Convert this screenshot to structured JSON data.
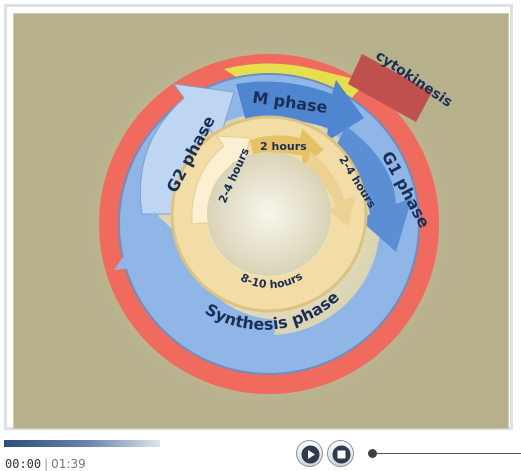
{
  "diagram": {
    "phases": {
      "m_phase": "M phase",
      "g1_phase": "G1 phase",
      "g2_phase": "G2 phase",
      "synthesis_phase": "Synthesis phase",
      "cytokinesis": "cytokinesis"
    },
    "durations": {
      "m": "2 hours",
      "g1": "2-4 hours",
      "g2": "2-4 hours",
      "synthesis": "8-10 hours"
    },
    "colors": {
      "background": "#b6b08b",
      "outer_ring": "#f06a5e",
      "blue_ring": "#8fb6e6",
      "inner_ring": "#f2dda6",
      "cytokinesis": "#c0504d",
      "yellow_band": "#e6df4d"
    }
  },
  "player": {
    "current_time": "00:00",
    "separator": "|",
    "total_time": "01:39",
    "progress_fraction": 0,
    "play_icon": "play-icon",
    "stop_icon": "stop-icon"
  }
}
